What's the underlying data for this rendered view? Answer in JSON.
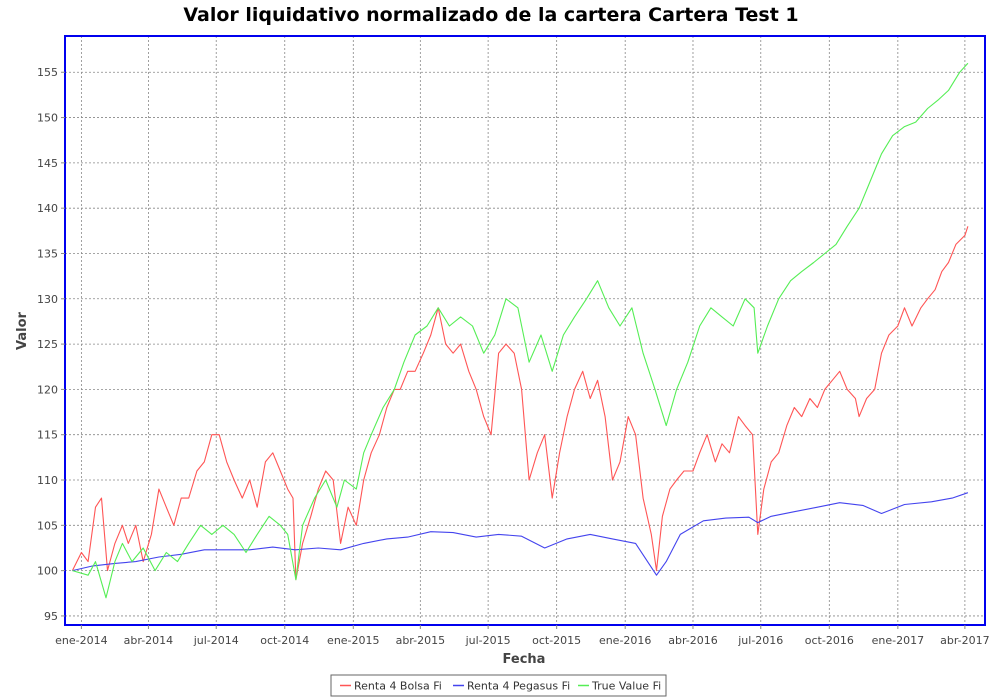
{
  "chart_data": {
    "type": "line",
    "title": "Valor liquidativo normalizado de la cartera Cartera Test 1",
    "xlabel": "Fecha",
    "ylabel": "Valor",
    "xlim": [
      "2013-12-10",
      "2017-04-28"
    ],
    "ylim": [
      94,
      159
    ],
    "y_ticks": [
      95,
      100,
      105,
      110,
      115,
      120,
      125,
      130,
      135,
      140,
      145,
      150,
      155
    ],
    "x_ticks": [
      {
        "date": "2014-01-01",
        "label": "ene-2014"
      },
      {
        "date": "2014-04-01",
        "label": "abr-2014"
      },
      {
        "date": "2014-07-01",
        "label": "jul-2014"
      },
      {
        "date": "2014-10-01",
        "label": "oct-2014"
      },
      {
        "date": "2015-01-01",
        "label": "ene-2015"
      },
      {
        "date": "2015-04-01",
        "label": "abr-2015"
      },
      {
        "date": "2015-07-01",
        "label": "jul-2015"
      },
      {
        "date": "2015-10-01",
        "label": "oct-2015"
      },
      {
        "date": "2016-01-01",
        "label": "ene-2016"
      },
      {
        "date": "2016-04-01",
        "label": "abr-2016"
      },
      {
        "date": "2016-07-01",
        "label": "jul-2016"
      },
      {
        "date": "2016-10-01",
        "label": "oct-2016"
      },
      {
        "date": "2017-01-01",
        "label": "ene-2017"
      },
      {
        "date": "2017-04-01",
        "label": "abr-2017"
      }
    ],
    "grid": true,
    "legend_position": "bottom",
    "series": [
      {
        "name": "Renta 4 Bolsa Fi",
        "color": "#ff5555",
        "points": [
          [
            "2013-12-20",
            100
          ],
          [
            "2014-01-01",
            102
          ],
          [
            "2014-01-10",
            101
          ],
          [
            "2014-01-20",
            107
          ],
          [
            "2014-01-28",
            108
          ],
          [
            "2014-02-05",
            100
          ],
          [
            "2014-02-15",
            103
          ],
          [
            "2014-02-25",
            105
          ],
          [
            "2014-03-05",
            103
          ],
          [
            "2014-03-15",
            105
          ],
          [
            "2014-03-25",
            101
          ],
          [
            "2014-04-05",
            104
          ],
          [
            "2014-04-15",
            109
          ],
          [
            "2014-04-25",
            107
          ],
          [
            "2014-05-05",
            105
          ],
          [
            "2014-05-15",
            108
          ],
          [
            "2014-05-25",
            108
          ],
          [
            "2014-06-05",
            111
          ],
          [
            "2014-06-15",
            112
          ],
          [
            "2014-06-25",
            115
          ],
          [
            "2014-07-05",
            115
          ],
          [
            "2014-07-15",
            112
          ],
          [
            "2014-07-25",
            110
          ],
          [
            "2014-08-05",
            108
          ],
          [
            "2014-08-15",
            110
          ],
          [
            "2014-08-25",
            107
          ],
          [
            "2014-09-05",
            112
          ],
          [
            "2014-09-15",
            113
          ],
          [
            "2014-09-25",
            111
          ],
          [
            "2014-10-05",
            109
          ],
          [
            "2014-10-12",
            108
          ],
          [
            "2014-10-16",
            99
          ],
          [
            "2014-10-25",
            103
          ],
          [
            "2014-11-05",
            106
          ],
          [
            "2014-11-15",
            109
          ],
          [
            "2014-11-25",
            111
          ],
          [
            "2014-12-05",
            110
          ],
          [
            "2014-12-15",
            103
          ],
          [
            "2014-12-25",
            107
          ],
          [
            "2015-01-05",
            105
          ],
          [
            "2015-01-15",
            110
          ],
          [
            "2015-01-25",
            113
          ],
          [
            "2015-02-05",
            115
          ],
          [
            "2015-02-15",
            118
          ],
          [
            "2015-02-25",
            120
          ],
          [
            "2015-03-05",
            120
          ],
          [
            "2015-03-15",
            122
          ],
          [
            "2015-03-25",
            122
          ],
          [
            "2015-04-05",
            124
          ],
          [
            "2015-04-15",
            126
          ],
          [
            "2015-04-25",
            129
          ],
          [
            "2015-05-05",
            125
          ],
          [
            "2015-05-15",
            124
          ],
          [
            "2015-05-25",
            125
          ],
          [
            "2015-06-05",
            122
          ],
          [
            "2015-06-15",
            120
          ],
          [
            "2015-06-25",
            117
          ],
          [
            "2015-07-05",
            115
          ],
          [
            "2015-07-15",
            124
          ],
          [
            "2015-07-25",
            125
          ],
          [
            "2015-08-05",
            124
          ],
          [
            "2015-08-15",
            120
          ],
          [
            "2015-08-25",
            110
          ],
          [
            "2015-09-05",
            113
          ],
          [
            "2015-09-15",
            115
          ],
          [
            "2015-09-25",
            108
          ],
          [
            "2015-10-05",
            113
          ],
          [
            "2015-10-15",
            117
          ],
          [
            "2015-10-25",
            120
          ],
          [
            "2015-11-05",
            122
          ],
          [
            "2015-11-15",
            119
          ],
          [
            "2015-11-25",
            121
          ],
          [
            "2015-12-05",
            117
          ],
          [
            "2015-12-15",
            110
          ],
          [
            "2015-12-25",
            112
          ],
          [
            "2016-01-05",
            117
          ],
          [
            "2016-01-15",
            115
          ],
          [
            "2016-01-25",
            108
          ],
          [
            "2016-02-05",
            104
          ],
          [
            "2016-02-12",
            100
          ],
          [
            "2016-02-20",
            106
          ],
          [
            "2016-03-01",
            109
          ],
          [
            "2016-03-10",
            110
          ],
          [
            "2016-03-20",
            111
          ],
          [
            "2016-04-01",
            111
          ],
          [
            "2016-04-10",
            113
          ],
          [
            "2016-04-20",
            115
          ],
          [
            "2016-05-01",
            112
          ],
          [
            "2016-05-10",
            114
          ],
          [
            "2016-05-20",
            113
          ],
          [
            "2016-06-01",
            117
          ],
          [
            "2016-06-10",
            116
          ],
          [
            "2016-06-20",
            115
          ],
          [
            "2016-06-27",
            104
          ],
          [
            "2016-07-05",
            109
          ],
          [
            "2016-07-15",
            112
          ],
          [
            "2016-07-25",
            113
          ],
          [
            "2016-08-05",
            116
          ],
          [
            "2016-08-15",
            118
          ],
          [
            "2016-08-25",
            117
          ],
          [
            "2016-09-05",
            119
          ],
          [
            "2016-09-15",
            118
          ],
          [
            "2016-09-25",
            120
          ],
          [
            "2016-10-05",
            121
          ],
          [
            "2016-10-15",
            122
          ],
          [
            "2016-10-25",
            120
          ],
          [
            "2016-11-05",
            119
          ],
          [
            "2016-11-10",
            117
          ],
          [
            "2016-11-20",
            119
          ],
          [
            "2016-12-01",
            120
          ],
          [
            "2016-12-10",
            124
          ],
          [
            "2016-12-20",
            126
          ],
          [
            "2017-01-01",
            127
          ],
          [
            "2017-01-10",
            129
          ],
          [
            "2017-01-20",
            127
          ],
          [
            "2017-02-01",
            129
          ],
          [
            "2017-02-10",
            130
          ],
          [
            "2017-02-20",
            131
          ],
          [
            "2017-03-01",
            133
          ],
          [
            "2017-03-10",
            134
          ],
          [
            "2017-03-20",
            136
          ],
          [
            "2017-04-01",
            137
          ],
          [
            "2017-04-05",
            138
          ]
        ]
      },
      {
        "name": "Renta 4 Pegasus Fi",
        "color": "#4444ee",
        "points": [
          [
            "2013-12-20",
            100
          ],
          [
            "2014-01-15",
            100.5
          ],
          [
            "2014-02-15",
            100.8
          ],
          [
            "2014-03-15",
            101
          ],
          [
            "2014-04-15",
            101.5
          ],
          [
            "2014-05-15",
            101.8
          ],
          [
            "2014-06-15",
            102.3
          ],
          [
            "2014-07-15",
            102.3
          ],
          [
            "2014-08-15",
            102.3
          ],
          [
            "2014-09-15",
            102.6
          ],
          [
            "2014-10-15",
            102.3
          ],
          [
            "2014-11-15",
            102.5
          ],
          [
            "2014-12-15",
            102.3
          ],
          [
            "2015-01-15",
            103
          ],
          [
            "2015-02-15",
            103.5
          ],
          [
            "2015-03-15",
            103.7
          ],
          [
            "2015-04-15",
            104.3
          ],
          [
            "2015-05-15",
            104.2
          ],
          [
            "2015-06-15",
            103.7
          ],
          [
            "2015-07-15",
            104
          ],
          [
            "2015-08-15",
            103.8
          ],
          [
            "2015-09-15",
            102.5
          ],
          [
            "2015-10-15",
            103.5
          ],
          [
            "2015-11-15",
            104
          ],
          [
            "2015-12-15",
            103.5
          ],
          [
            "2016-01-15",
            103
          ],
          [
            "2016-02-12",
            99.5
          ],
          [
            "2016-02-25",
            101
          ],
          [
            "2016-03-15",
            104
          ],
          [
            "2016-04-15",
            105.5
          ],
          [
            "2016-05-15",
            105.8
          ],
          [
            "2016-06-15",
            105.9
          ],
          [
            "2016-06-27",
            105.3
          ],
          [
            "2016-07-15",
            106
          ],
          [
            "2016-08-15",
            106.5
          ],
          [
            "2016-09-15",
            107
          ],
          [
            "2016-10-15",
            107.5
          ],
          [
            "2016-11-15",
            107.2
          ],
          [
            "2016-12-10",
            106.3
          ],
          [
            "2017-01-10",
            107.3
          ],
          [
            "2017-02-15",
            107.6
          ],
          [
            "2017-03-15",
            108
          ],
          [
            "2017-04-05",
            108.6
          ]
        ]
      },
      {
        "name": "True Value Fi",
        "color": "#55ee55",
        "points": [
          [
            "2013-12-20",
            100
          ],
          [
            "2014-01-10",
            99.5
          ],
          [
            "2014-01-20",
            101
          ],
          [
            "2014-02-03",
            97
          ],
          [
            "2014-02-15",
            101
          ],
          [
            "2014-02-25",
            103
          ],
          [
            "2014-03-10",
            101
          ],
          [
            "2014-03-25",
            102.5
          ],
          [
            "2014-04-10",
            100
          ],
          [
            "2014-04-25",
            102
          ],
          [
            "2014-05-10",
            101
          ],
          [
            "2014-05-25",
            103
          ],
          [
            "2014-06-10",
            105
          ],
          [
            "2014-06-25",
            104
          ],
          [
            "2014-07-10",
            105
          ],
          [
            "2014-07-25",
            104
          ],
          [
            "2014-08-10",
            102
          ],
          [
            "2014-08-25",
            104
          ],
          [
            "2014-09-10",
            106
          ],
          [
            "2014-09-25",
            105
          ],
          [
            "2014-10-05",
            104
          ],
          [
            "2014-10-16",
            99
          ],
          [
            "2014-10-25",
            105
          ],
          [
            "2014-11-10",
            108
          ],
          [
            "2014-11-25",
            110
          ],
          [
            "2014-12-10",
            107
          ],
          [
            "2014-12-20",
            110
          ],
          [
            "2015-01-05",
            109
          ],
          [
            "2015-01-15",
            113
          ],
          [
            "2015-01-25",
            115
          ],
          [
            "2015-02-10",
            118
          ],
          [
            "2015-02-25",
            120
          ],
          [
            "2015-03-10",
            123
          ],
          [
            "2015-03-25",
            126
          ],
          [
            "2015-04-10",
            127
          ],
          [
            "2015-04-25",
            129
          ],
          [
            "2015-05-10",
            127
          ],
          [
            "2015-05-25",
            128
          ],
          [
            "2015-06-10",
            127
          ],
          [
            "2015-06-25",
            124
          ],
          [
            "2015-07-10",
            126
          ],
          [
            "2015-07-25",
            130
          ],
          [
            "2015-08-10",
            129
          ],
          [
            "2015-08-25",
            123
          ],
          [
            "2015-09-10",
            126
          ],
          [
            "2015-09-25",
            122
          ],
          [
            "2015-10-10",
            126
          ],
          [
            "2015-10-25",
            128
          ],
          [
            "2015-11-10",
            130
          ],
          [
            "2015-11-25",
            132
          ],
          [
            "2015-12-10",
            129
          ],
          [
            "2015-12-25",
            127
          ],
          [
            "2016-01-10",
            129
          ],
          [
            "2016-01-25",
            124
          ],
          [
            "2016-02-10",
            120
          ],
          [
            "2016-02-25",
            116
          ],
          [
            "2016-03-10",
            120
          ],
          [
            "2016-03-25",
            123
          ],
          [
            "2016-04-10",
            127
          ],
          [
            "2016-04-25",
            129
          ],
          [
            "2016-05-10",
            128
          ],
          [
            "2016-05-25",
            127
          ],
          [
            "2016-06-10",
            130
          ],
          [
            "2016-06-22",
            129
          ],
          [
            "2016-06-27",
            124
          ],
          [
            "2016-07-10",
            127
          ],
          [
            "2016-07-25",
            130
          ],
          [
            "2016-08-10",
            132
          ],
          [
            "2016-08-25",
            133
          ],
          [
            "2016-09-10",
            134
          ],
          [
            "2016-09-25",
            135
          ],
          [
            "2016-10-10",
            136
          ],
          [
            "2016-10-25",
            138
          ],
          [
            "2016-11-10",
            140
          ],
          [
            "2016-11-25",
            143
          ],
          [
            "2016-12-10",
            146
          ],
          [
            "2016-12-25",
            148
          ],
          [
            "2017-01-10",
            149
          ],
          [
            "2017-01-25",
            149.5
          ],
          [
            "2017-02-10",
            151
          ],
          [
            "2017-02-25",
            152
          ],
          [
            "2017-03-10",
            153
          ],
          [
            "2017-03-25",
            155
          ],
          [
            "2017-04-05",
            156
          ]
        ]
      }
    ]
  }
}
